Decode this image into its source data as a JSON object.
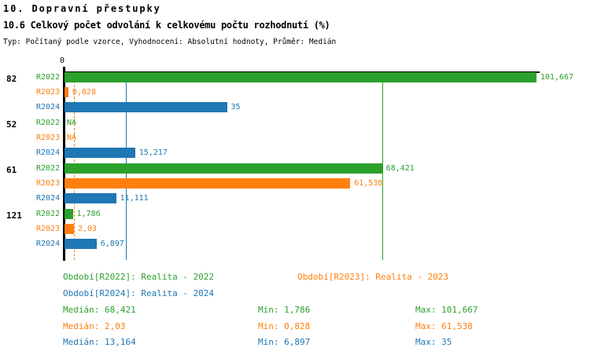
{
  "title": "10. Dopravní přestupky",
  "subtitle": "10.6 Celkový počet odvolání k celkovému počtu rozhodnutí (%)",
  "meta": "Typ: Počítaný podle vzorce, Vyhodnocení: Absolutní hodnoty, Průměr: Medián",
  "colors": {
    "R2022": "#2ca02c",
    "R2023": "#ff7f0e",
    "R2024": "#1f77b4",
    "axis": "#000000",
    "background": "#ffffff"
  },
  "chart_data": {
    "type": "bar",
    "orientation": "horizontal",
    "axis_zero_label": "0",
    "value_axis_min": 0,
    "value_axis_max_shown": 101.667,
    "series_labels": [
      "R2022",
      "R2023",
      "R2024"
    ],
    "groups": [
      {
        "label": "82",
        "bars": [
          {
            "series": "R2022",
            "value": 101.667,
            "display": "101,667"
          },
          {
            "series": "R2023",
            "value": 0.828,
            "display": "0,828"
          },
          {
            "series": "R2024",
            "value": 35,
            "display": "35"
          }
        ]
      },
      {
        "label": "52",
        "bars": [
          {
            "series": "R2022",
            "value": null,
            "display": "NA"
          },
          {
            "series": "R2023",
            "value": null,
            "display": "NA"
          },
          {
            "series": "R2024",
            "value": 15.217,
            "display": "15,217"
          }
        ]
      },
      {
        "label": "61",
        "bars": [
          {
            "series": "R2022",
            "value": 68.421,
            "display": "68,421"
          },
          {
            "series": "R2023",
            "value": 61.538,
            "display": "61,538"
          },
          {
            "series": "R2024",
            "value": 11.111,
            "display": "11,111"
          }
        ]
      },
      {
        "label": "121",
        "bars": [
          {
            "series": "R2022",
            "value": 1.786,
            "display": "1,786"
          },
          {
            "series": "R2023",
            "value": 2.03,
            "display": "2,03"
          },
          {
            "series": "R2024",
            "value": 6.897,
            "display": "6,897"
          }
        ]
      }
    ],
    "median_lines": [
      {
        "series": "R2022",
        "value": 68.421,
        "style": "solid"
      },
      {
        "series": "R2023",
        "value": 2.03,
        "style": "dashed"
      },
      {
        "series": "R2024",
        "value": 13.164,
        "style": "solid"
      }
    ]
  },
  "legend": [
    {
      "series": "R2022",
      "label": "Období[R2022]: Realita - 2022",
      "row": 0,
      "col": 0
    },
    {
      "series": "R2023",
      "label": "Období[R2023]: Realita - 2023",
      "row": 0,
      "col": 1
    },
    {
      "series": "R2024",
      "label": "Období[R2024]: Realita - 2024",
      "row": 1,
      "col": 0
    }
  ],
  "stats": [
    {
      "series": "R2022",
      "median": "Medián: 68,421",
      "min": "Min: 1,786",
      "max": "Max: 101,667"
    },
    {
      "series": "R2023",
      "median": "Medián: 2,03",
      "min": "Min: 0,828",
      "max": "Max: 61,538"
    },
    {
      "series": "R2024",
      "median": "Medián: 13,164",
      "min": "Min: 6,897",
      "max": "Max: 35"
    }
  ]
}
